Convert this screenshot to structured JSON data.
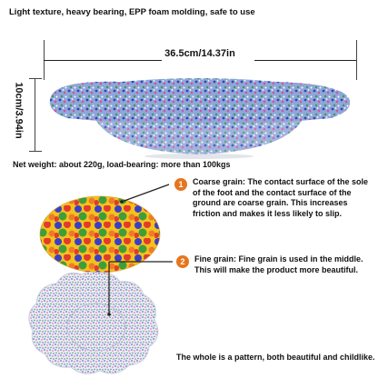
{
  "tagline": "Light texture, heavy bearing, EPP foam molding, safe to use",
  "width_label": "36.5cm/14.37in",
  "height_label": "10cm/3.94in",
  "weight_text": "Net weight: about 220g, load-bearing: more than 100kgs",
  "features": [
    {
      "number": "1",
      "text": "Coarse grain: The contact surface of the sole of the foot and the contact surface of the ground are coarse grain. This increases friction and makes it less likely to slip."
    },
    {
      "number": "2",
      "text": "Fine grain: Fine grain is used in the middle. This will make the product more beautiful."
    }
  ],
  "footer_text": "The whole is a pattern, both beautiful and childlike.",
  "colors": {
    "accent": "#e6761e"
  }
}
